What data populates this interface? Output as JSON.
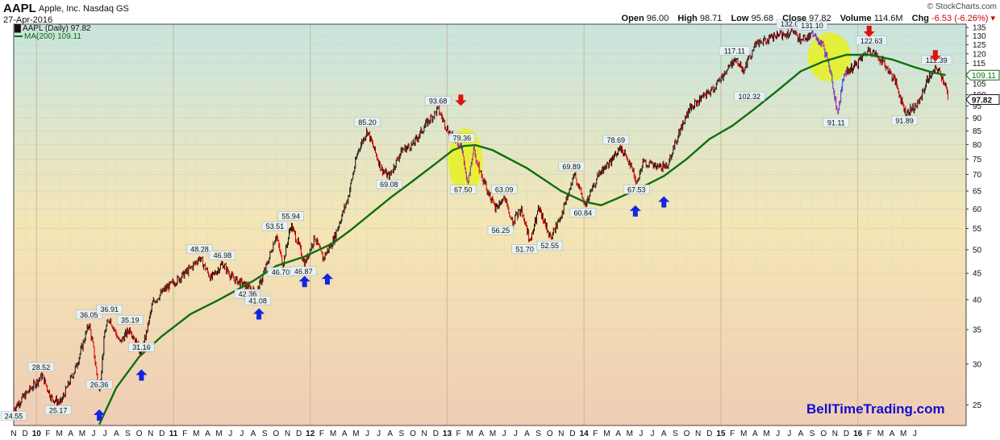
{
  "header": {
    "symbol": "AAPL",
    "company": "Apple, Inc.  Nasdaq GS",
    "date": "27-Apr-2016",
    "copyright": "© StockCharts.com",
    "open_label": "Open",
    "open": "96.00",
    "high_label": "High",
    "high": "98.71",
    "low_label": "Low",
    "low": "95.68",
    "close_label": "Close",
    "close": "97.82",
    "volume_label": "Volume",
    "volume": "114.6M",
    "chg_label": "Chg",
    "chg": "-6.53 (-6.26%)"
  },
  "legend": {
    "price_label": "AAPL (Daily) 97.82",
    "ma_label": "MA(200) 109.11"
  },
  "watermark": "BellTimeTrading.com",
  "colors": {
    "bg_top": "#c6e6e0",
    "bg_mid": "#f4e6b4",
    "bg_bottom": "#f0cdb4",
    "ma_line": "#0f6e0f",
    "bar": "#111111",
    "bar_down": "#cc0000",
    "ellipse": "#e8f020",
    "up_arrow": "#1424e0",
    "down_arrow": "#e01010",
    "current_tag": "#111111",
    "ma_tag": "#0f6e0f"
  },
  "chart_data": {
    "type": "line",
    "scale": "log",
    "ylim": [
      22.8,
      137
    ],
    "yticks": [
      25,
      30,
      35,
      40,
      45,
      50,
      55,
      60,
      65,
      70,
      75,
      80,
      85,
      90,
      95,
      100,
      105,
      110,
      115,
      120,
      125,
      130,
      135
    ],
    "ytick_labels": [
      "25",
      "30",
      "35",
      "40",
      "45",
      "50",
      "55",
      "60",
      "65",
      "70",
      "75",
      "80",
      "85",
      "90",
      "95",
      "100",
      "105",
      "110",
      "115",
      "120",
      "125",
      "130",
      "135"
    ],
    "x_months": [
      "N",
      "D",
      "10",
      "F",
      "M",
      "A",
      "M",
      "J",
      "J",
      "A",
      "S",
      "O",
      "N",
      "D",
      "11",
      "F",
      "M",
      "A",
      "M",
      "J",
      "J",
      "A",
      "S",
      "O",
      "N",
      "D",
      "12",
      "F",
      "M",
      "A",
      "M",
      "J",
      "J",
      "A",
      "S",
      "O",
      "N",
      "D",
      "13",
      "F",
      "M",
      "A",
      "M",
      "J",
      "J",
      "A",
      "S",
      "O",
      "N",
      "D",
      "14",
      "F",
      "M",
      "A",
      "M",
      "J",
      "J",
      "A",
      "S",
      "O",
      "N",
      "D",
      "15",
      "F",
      "M",
      "A",
      "M",
      "J",
      "J",
      "A",
      "S",
      "O",
      "N",
      "D",
      "16",
      "F",
      "M",
      "A",
      "M",
      "J"
    ],
    "year_labels": [
      "10",
      "11",
      "12",
      "13",
      "14",
      "15",
      "16"
    ],
    "series": [
      {
        "name": "AAPL (Daily)",
        "points": [
          [
            0,
            24.6
          ],
          [
            1.5,
            26.9
          ],
          [
            2.5,
            28.5
          ],
          [
            3.3,
            25.8
          ],
          [
            4.1,
            25.2
          ],
          [
            5.5,
            29.8
          ],
          [
            6.6,
            36.0
          ],
          [
            7.0,
            32.0
          ],
          [
            7.5,
            26.4
          ],
          [
            8.0,
            34.8
          ],
          [
            8.4,
            36.9
          ],
          [
            9.3,
            33.0
          ],
          [
            10.2,
            35.2
          ],
          [
            11.2,
            31.2
          ],
          [
            12.2,
            39.5
          ],
          [
            13.3,
            42.0
          ],
          [
            14.5,
            44.0
          ],
          [
            15.5,
            46.0
          ],
          [
            16.3,
            48.3
          ],
          [
            17.3,
            44.0
          ],
          [
            18.3,
            47.0
          ],
          [
            19.2,
            44.0
          ],
          [
            20.5,
            42.4
          ],
          [
            21.3,
            41.1
          ],
          [
            22.3,
            47.5
          ],
          [
            23.0,
            53.5
          ],
          [
            23.6,
            46.7
          ],
          [
            24.3,
            55.9
          ],
          [
            25.0,
            51.0
          ],
          [
            25.5,
            46.9
          ],
          [
            26.4,
            53.0
          ],
          [
            27.1,
            48.0
          ],
          [
            28.0,
            52.0
          ],
          [
            29.3,
            63.0
          ],
          [
            30.2,
            78.0
          ],
          [
            31.0,
            85.2
          ],
          [
            32.2,
            72.0
          ],
          [
            32.9,
            69.1
          ],
          [
            34.0,
            78.0
          ],
          [
            35.0,
            80.0
          ],
          [
            36.2,
            88.0
          ],
          [
            37.2,
            93.7
          ],
          [
            38.1,
            85.0
          ],
          [
            39.2,
            79.4
          ],
          [
            39.8,
            67.5
          ],
          [
            40.3,
            78.0
          ],
          [
            41.0,
            70.0
          ],
          [
            42.2,
            60.0
          ],
          [
            43.0,
            63.1
          ],
          [
            43.7,
            56.3
          ],
          [
            44.5,
            60.0
          ],
          [
            45.3,
            51.7
          ],
          [
            46.0,
            60.0
          ],
          [
            47.1,
            52.6
          ],
          [
            48.2,
            60.0
          ],
          [
            49.2,
            69.9
          ],
          [
            50.1,
            60.8
          ],
          [
            51.3,
            70.0
          ],
          [
            52.3,
            74.0
          ],
          [
            53.2,
            78.7
          ],
          [
            54.0,
            74.0
          ],
          [
            54.6,
            67.5
          ],
          [
            55.2,
            74.0
          ],
          [
            56.5,
            72.0
          ],
          [
            57.3,
            73.0
          ],
          [
            58.3,
            84.0
          ],
          [
            59.3,
            94.0
          ],
          [
            60.3,
            98.0
          ],
          [
            61.3,
            102.3
          ],
          [
            62.3,
            110.0
          ],
          [
            63.2,
            117.1
          ],
          [
            64.0,
            112.0
          ],
          [
            65.0,
            125.0
          ],
          [
            66.2,
            128.0
          ],
          [
            67.0,
            130.0
          ],
          [
            68.2,
            132.1
          ],
          [
            69.0,
            128.0
          ],
          [
            70.2,
            131.1
          ],
          [
            70.9,
            124.0
          ],
          [
            71.6,
            112.0
          ],
          [
            72.2,
            91.1
          ],
          [
            72.8,
            110.0
          ],
          [
            73.8,
            114.0
          ],
          [
            75.0,
            122.6
          ],
          [
            76.2,
            116.0
          ],
          [
            77.3,
            106.0
          ],
          [
            78.2,
            91.9
          ],
          [
            79.3,
            96.0
          ],
          [
            80.2,
            108.0
          ],
          [
            81.0,
            112.4
          ],
          [
            81.7,
            104.5
          ],
          [
            81.9,
            97.8
          ]
        ]
      },
      {
        "name": "MA(200)",
        "points": [
          [
            7.5,
            22.9
          ],
          [
            9.0,
            27.0
          ],
          [
            11.0,
            31.0
          ],
          [
            13.0,
            34.0
          ],
          [
            15.5,
            37.5
          ],
          [
            18.0,
            40.0
          ],
          [
            21.0,
            43.5
          ],
          [
            23.0,
            46.5
          ],
          [
            25.5,
            48.5
          ],
          [
            28.0,
            51.5
          ],
          [
            29.5,
            54.5
          ],
          [
            31.0,
            58.0
          ],
          [
            33.0,
            63.0
          ],
          [
            35.0,
            68.0
          ],
          [
            37.0,
            73.5
          ],
          [
            38.5,
            78.0
          ],
          [
            39.5,
            79.5
          ],
          [
            40.5,
            79.8
          ],
          [
            42.0,
            78.0
          ],
          [
            45.0,
            72.0
          ],
          [
            48.0,
            65.0
          ],
          [
            50.0,
            62.0
          ],
          [
            51.5,
            61.0
          ],
          [
            53.0,
            63.0
          ],
          [
            55.0,
            66.0
          ],
          [
            57.0,
            69.5
          ],
          [
            59.0,
            75.0
          ],
          [
            61.0,
            82.0
          ],
          [
            63.0,
            87.0
          ],
          [
            65.0,
            94.0
          ],
          [
            67.0,
            102.0
          ],
          [
            69.0,
            111.0
          ],
          [
            71.0,
            116.0
          ],
          [
            73.0,
            119.5
          ],
          [
            75.0,
            119.5
          ],
          [
            77.0,
            117.0
          ],
          [
            79.0,
            113.0
          ],
          [
            80.5,
            110.5
          ],
          [
            81.7,
            109.1
          ]
        ]
      }
    ],
    "annotations": [
      {
        "label": "24.55",
        "x": 0,
        "y": 24.55,
        "pos": "below"
      },
      {
        "label": "28.52",
        "x": 2.4,
        "y": 28.52,
        "pos": "above"
      },
      {
        "label": "25.17",
        "x": 3.9,
        "y": 25.17,
        "pos": "below"
      },
      {
        "label": "36.05",
        "x": 6.6,
        "y": 36.05,
        "pos": "above"
      },
      {
        "label": "26.36",
        "x": 7.5,
        "y": 26.36,
        "pos": "above"
      },
      {
        "label": "36.91",
        "x": 8.4,
        "y": 36.91,
        "pos": "above"
      },
      {
        "label": "35.19",
        "x": 10.2,
        "y": 35.19,
        "pos": "above"
      },
      {
        "label": "31.16",
        "x": 11.2,
        "y": 31.16,
        "pos": "above"
      },
      {
        "label": "48.28",
        "x": 16.3,
        "y": 48.28,
        "pos": "above"
      },
      {
        "label": "46.98",
        "x": 18.3,
        "y": 46.98,
        "pos": "above"
      },
      {
        "label": "42.36",
        "x": 20.5,
        "y": 42.36,
        "pos": "below"
      },
      {
        "label": "41.08",
        "x": 21.4,
        "y": 41.08,
        "pos": "below"
      },
      {
        "label": "53.51",
        "x": 22.9,
        "y": 53.51,
        "pos": "above"
      },
      {
        "label": "46.70",
        "x": 23.4,
        "y": 46.7,
        "pos": "below"
      },
      {
        "label": "55.94",
        "x": 24.3,
        "y": 55.94,
        "pos": "above"
      },
      {
        "label": "46.87",
        "x": 25.4,
        "y": 46.87,
        "pos": "below"
      },
      {
        "label": "85.20",
        "x": 31.0,
        "y": 85.2,
        "pos": "above"
      },
      {
        "label": "69.08",
        "x": 32.9,
        "y": 69.08,
        "pos": "below"
      },
      {
        "label": "93.68",
        "x": 37.2,
        "y": 93.68,
        "pos": "above"
      },
      {
        "label": "79.36",
        "x": 39.3,
        "y": 79.36,
        "pos": "above"
      },
      {
        "label": "67.50",
        "x": 39.4,
        "y": 67.5,
        "pos": "below"
      },
      {
        "label": "63.09",
        "x": 43.0,
        "y": 63.09,
        "pos": "above"
      },
      {
        "label": "56.25",
        "x": 42.7,
        "y": 56.25,
        "pos": "below"
      },
      {
        "label": "51.70",
        "x": 44.8,
        "y": 51.7,
        "pos": "below"
      },
      {
        "label": "52.55",
        "x": 47.0,
        "y": 52.55,
        "pos": "below"
      },
      {
        "label": "69.89",
        "x": 48.9,
        "y": 69.89,
        "pos": "above"
      },
      {
        "label": "60.84",
        "x": 49.9,
        "y": 60.84,
        "pos": "below"
      },
      {
        "label": "78.69",
        "x": 52.8,
        "y": 78.69,
        "pos": "above"
      },
      {
        "label": "67.53",
        "x": 54.6,
        "y": 67.53,
        "pos": "below"
      },
      {
        "label": "117.11",
        "x": 63.2,
        "y": 117.11,
        "pos": "above"
      },
      {
        "label": "102.32",
        "x": 64.5,
        "y": 102.32,
        "pos": "below"
      },
      {
        "label": "132.09",
        "x": 68.2,
        "y": 132.09,
        "pos": "above"
      },
      {
        "label": "131.10",
        "x": 70.0,
        "y": 131.1,
        "pos": "above"
      },
      {
        "label": "91.11",
        "x": 72.1,
        "y": 91.11,
        "pos": "below"
      },
      {
        "label": "122.63",
        "x": 75.2,
        "y": 122.63,
        "pos": "above"
      },
      {
        "label": "91.89",
        "x": 78.1,
        "y": 91.89,
        "pos": "below"
      },
      {
        "label": "112.39",
        "x": 80.9,
        "y": 112.39,
        "pos": "above"
      }
    ],
    "current_price_tag": "97.82",
    "ma_tag": "109.11",
    "highlight_ellipses": [
      {
        "x": 39.6,
        "y": 74.0,
        "rx": 1.5,
        "ry_low": 64.0,
        "ry_high": 86.0
      },
      {
        "x": 71.5,
        "y": 118.0,
        "rx": 1.9,
        "ry_low": 106.0,
        "ry_high": 132.0
      }
    ],
    "up_arrows": [
      [
        7.5,
        24.5
      ],
      [
        11.2,
        29.3
      ],
      [
        21.5,
        38.5
      ],
      [
        25.5,
        44.5
      ],
      [
        27.5,
        45.0
      ],
      [
        54.5,
        61.0
      ],
      [
        57.0,
        63.5
      ]
    ],
    "down_arrows": [
      [
        39.2,
        100.0
      ],
      [
        75.0,
        136.0
      ],
      [
        80.8,
        122.0
      ]
    ]
  }
}
